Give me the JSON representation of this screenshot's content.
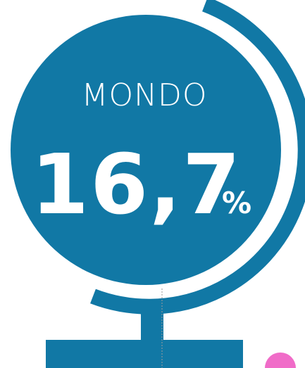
{
  "label": "MONDO",
  "value": "16,7",
  "unit": "%"
}
